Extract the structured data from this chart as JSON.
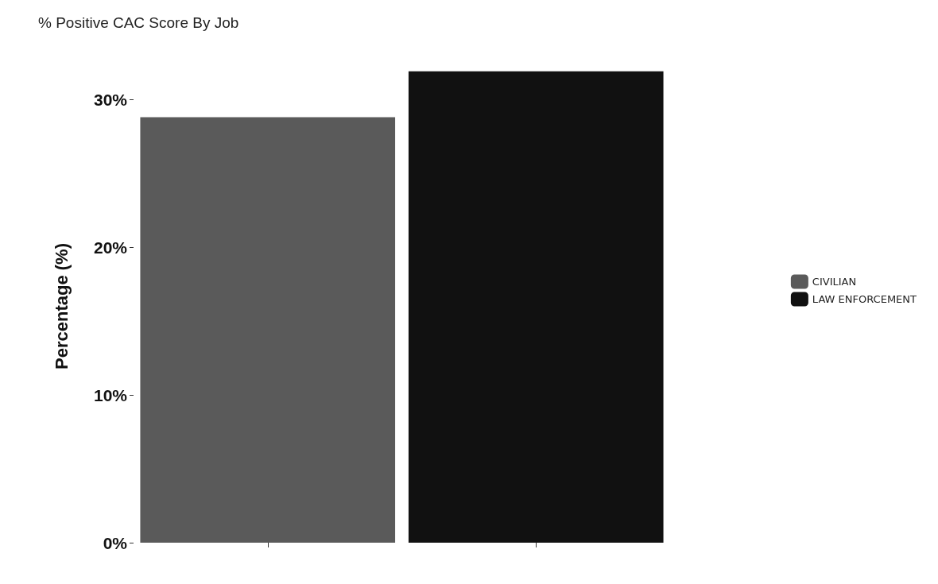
{
  "chart_data": {
    "type": "bar",
    "title": "% Positive CAC Score By Job",
    "ylabel": "Percentage (%)",
    "categories": [
      null,
      null
    ],
    "series": [
      {
        "name": "CIVILIAN",
        "color": "#5a5a5a",
        "values": [
          28.8,
          null
        ]
      },
      {
        "name": "LAW ENFORCEMENT",
        "color": "#111111",
        "values": [
          null,
          31.9
        ]
      }
    ],
    "ylim": [
      0,
      32
    ],
    "yticks": [
      {
        "value": 0,
        "label": "0%"
      },
      {
        "value": 10,
        "label": "10%"
      },
      {
        "value": 20,
        "label": "20%"
      },
      {
        "value": 30,
        "label": "30%"
      }
    ],
    "stacked": true,
    "grid": false,
    "legend": "right"
  }
}
